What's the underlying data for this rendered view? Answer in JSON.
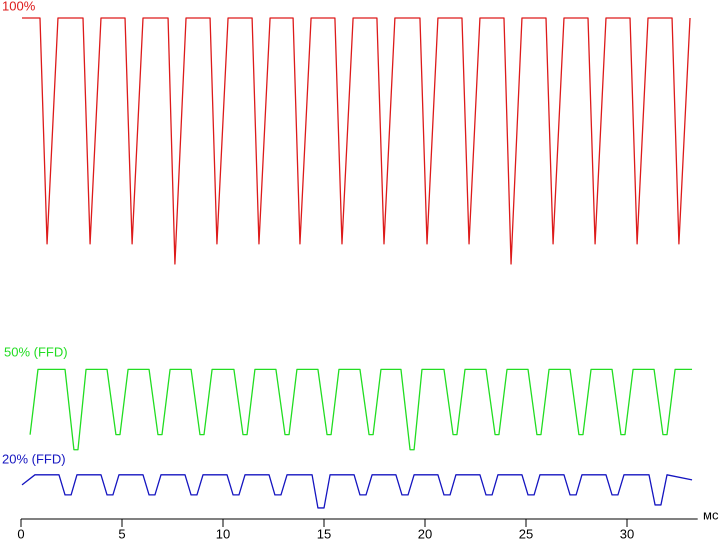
{
  "chart_data": {
    "type": "line",
    "x_label": "мс",
    "xlim": [
      0,
      33.5
    ],
    "xticks": [
      0,
      5,
      10,
      15,
      20,
      25,
      30
    ],
    "ylim": [
      0,
      100
    ],
    "series": [
      {
        "name": "100%",
        "color": "#dd1a1a",
        "x": [
          0.05,
          0.94,
          1.29,
          1.83,
          3.07,
          3.42,
          3.96,
          5.15,
          5.5,
          6.04,
          7.28,
          7.62,
          8.17,
          9.36,
          9.7,
          10.25,
          11.44,
          11.78,
          12.33,
          13.47,
          13.81,
          14.36,
          15.54,
          15.89,
          16.44,
          17.62,
          17.97,
          18.51,
          19.75,
          20.1,
          20.64,
          21.83,
          22.18,
          22.72,
          23.91,
          24.26,
          24.8,
          25.99,
          26.34,
          26.88,
          28.07,
          28.42,
          28.96,
          30.15,
          30.5,
          31.04,
          32.23,
          32.57,
          33.12
        ],
        "values": [
          100,
          100,
          55,
          100,
          100,
          55,
          100,
          100,
          55,
          100,
          100,
          51,
          100,
          100,
          55,
          100,
          100,
          55,
          100,
          100,
          55,
          100,
          100,
          55,
          100,
          100,
          55,
          100,
          100,
          55,
          100,
          100,
          55,
          100,
          100,
          51,
          100,
          100,
          55,
          100,
          100,
          55,
          100,
          100,
          55,
          100,
          100,
          55,
          100
        ]
      },
      {
        "name": "50% (FFD)",
        "color": "#22dd22",
        "x": [
          0.45,
          0.84,
          2.18,
          2.62,
          2.82,
          3.22,
          4.26,
          4.7,
          4.9,
          5.3,
          6.34,
          6.78,
          6.98,
          7.38,
          8.42,
          8.86,
          9.06,
          9.46,
          10.54,
          10.99,
          11.19,
          11.58,
          12.62,
          13.07,
          13.27,
          13.66,
          14.7,
          15.15,
          15.35,
          15.74,
          16.78,
          17.23,
          17.43,
          17.82,
          18.81,
          19.26,
          19.46,
          19.85,
          20.94,
          21.39,
          21.58,
          21.98,
          23.02,
          23.47,
          23.66,
          24.06,
          25.1,
          25.54,
          25.74,
          26.14,
          27.18,
          27.62,
          27.82,
          28.22,
          29.26,
          29.7,
          29.9,
          30.3,
          31.34,
          31.78,
          31.98,
          32.38,
          33.22
        ],
        "values": [
          17,
          30,
          30,
          14,
          14,
          30,
          30,
          17,
          17,
          30,
          30,
          17,
          17,
          30,
          30,
          17,
          17,
          30,
          30,
          17,
          17,
          30,
          30,
          17,
          17,
          30,
          30,
          17,
          17,
          30,
          30,
          17,
          17,
          30,
          30,
          14,
          14,
          30,
          30,
          17,
          17,
          30,
          30,
          17,
          17,
          30,
          30,
          17,
          17,
          30,
          30,
          17,
          17,
          30,
          30,
          17,
          17,
          30,
          30,
          17,
          17,
          30,
          30
        ]
      },
      {
        "name": "20% (FFD)",
        "color": "#1515c0",
        "x": [
          0.05,
          0.69,
          1.88,
          2.18,
          2.48,
          2.77,
          3.96,
          4.26,
          4.55,
          4.85,
          6.04,
          6.34,
          6.63,
          6.93,
          8.12,
          8.42,
          8.71,
          9.01,
          10.2,
          10.5,
          10.79,
          11.09,
          12.28,
          12.57,
          12.87,
          13.17,
          14.41,
          14.7,
          15.0,
          15.3,
          16.49,
          16.78,
          17.08,
          17.38,
          18.56,
          18.86,
          19.16,
          19.46,
          20.64,
          20.94,
          21.24,
          21.53,
          22.72,
          23.02,
          23.32,
          23.61,
          24.8,
          25.1,
          25.4,
          25.69,
          26.88,
          27.18,
          27.48,
          27.77,
          28.96,
          29.26,
          29.55,
          29.85,
          31.09,
          31.39,
          31.68,
          31.98,
          33.22
        ],
        "values": [
          7,
          9,
          9,
          5,
          5,
          9,
          9,
          5,
          5,
          9,
          9,
          5,
          5,
          9,
          9,
          5,
          5,
          9,
          9,
          5,
          5,
          9,
          9,
          5,
          5,
          9,
          9,
          2.4,
          2.4,
          9,
          9,
          5,
          5,
          9,
          9,
          5,
          5,
          9,
          9,
          5,
          5,
          9,
          9,
          5,
          5,
          9,
          9,
          5,
          5,
          9,
          9,
          5,
          5,
          9,
          9,
          5,
          5,
          9,
          9,
          3,
          3,
          9,
          8
        ]
      }
    ]
  }
}
